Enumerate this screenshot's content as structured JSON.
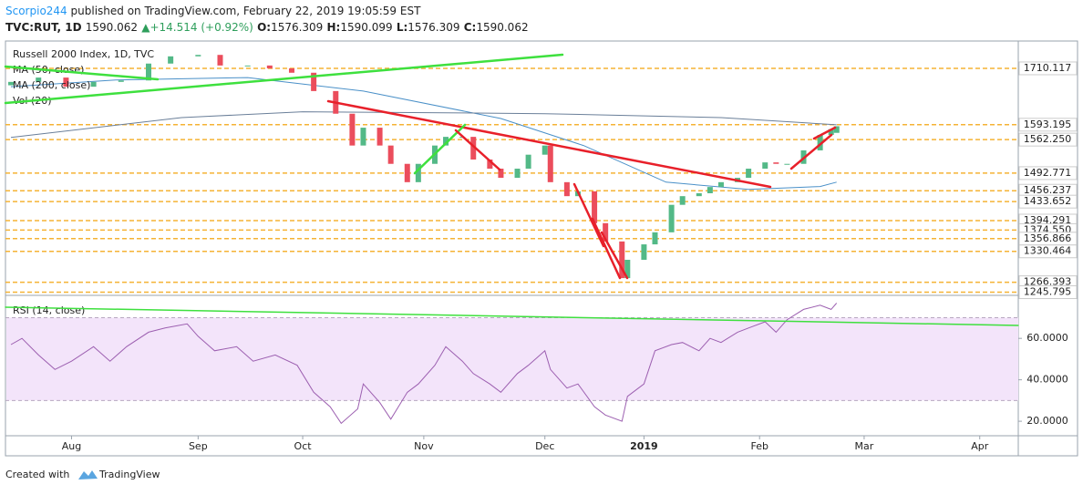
{
  "header": {
    "author": "Scorpio244",
    "published": "published on TradingView.com, February 22, 2019 19:05:59 EST",
    "symbol": "TVC:RUT, 1D",
    "last": "1590.062",
    "arrow": "▲",
    "change": "+14.514 (+0.92%)",
    "o_label": "O:",
    "o": "1576.309",
    "h_label": "H:",
    "h": "1590.099",
    "l_label": "L:",
    "l": "1576.309",
    "c_label": "C:",
    "c": "1590.062"
  },
  "footer": {
    "created": "Created with",
    "brand": "TradingView"
  },
  "chart_data": {
    "type": "candlestick",
    "title": "Russell 2000 Index, 1D, TVC",
    "x": [
      1,
      6,
      11,
      16,
      21,
      26,
      30,
      35,
      39,
      44,
      48,
      52,
      56,
      60,
      63,
      65,
      68,
      70,
      73,
      75,
      78,
      80,
      83,
      85,
      88,
      90,
      93,
      95,
      98,
      99,
      102,
      104,
      107,
      109,
      112,
      113,
      116,
      118,
      121,
      123,
      126,
      128,
      130,
      133,
      135,
      138,
      140,
      142,
      145,
      148,
      150,
      151
    ],
    "open": [
      1675,
      1682,
      1691,
      1672,
      1682,
      1685,
      1720,
      1735,
      1738,
      1716,
      1716,
      1710,
      1701,
      1663,
      1616,
      1550,
      1587,
      1550,
      1512,
      1474,
      1512,
      1550,
      1568,
      1568,
      1521,
      1502,
      1483,
      1502,
      1531,
      1550,
      1474,
      1445,
      1455,
      1389,
      1351,
      1275,
      1313,
      1345,
      1370,
      1427,
      1445,
      1451,
      1464,
      1474,
      1483,
      1502,
      1515,
      1512,
      1512,
      1540,
      1572,
      1576.309
    ],
    "close": [
      1682,
      1691,
      1672,
      1682,
      1685,
      1720,
      1735,
      1738,
      1716,
      1716,
      1710,
      1701,
      1663,
      1616,
      1550,
      1587,
      1550,
      1512,
      1474,
      1512,
      1550,
      1568,
      1568,
      1521,
      1502,
      1483,
      1502,
      1531,
      1550,
      1474,
      1445,
      1455,
      1389,
      1351,
      1275,
      1313,
      1345,
      1370,
      1427,
      1445,
      1451,
      1464,
      1474,
      1483,
      1502,
      1515,
      1512,
      1512,
      1540,
      1572,
      1584,
      1590.062
    ],
    "up_color": "#53b987",
    "down_color": "#eb4d5c",
    "xlim": [
      0,
      184
    ],
    "xticks": [
      {
        "value": 12,
        "label": "Aug"
      },
      {
        "value": 35,
        "label": "Sep"
      },
      {
        "value": 54,
        "label": "Oct"
      },
      {
        "value": 76,
        "label": "Nov"
      },
      {
        "value": 98,
        "label": "Dec"
      },
      {
        "value": 116,
        "label": "2019"
      },
      {
        "value": 137,
        "label": "Feb"
      },
      {
        "value": 156,
        "label": "Mar"
      },
      {
        "value": 177,
        "label": "Apr"
      }
    ],
    "ylim": [
      1243,
      1763
    ],
    "yticks": [
      1710.117,
      1593.195,
      {
        "value": 1562.25,
        "label": "1562.250"
      },
      1492.771,
      1456.237,
      1433.652,
      1394.291,
      {
        "value": 1374.55,
        "label": "1374.550"
      },
      1356.866,
      1330.464,
      1266.393,
      1245.795
    ],
    "level_color": "#f5b335",
    "series": [
      {
        "name": "MA (50, close)",
        "color": "#4a90c8",
        "x": [
          1,
          20,
          44,
          65,
          90,
          105,
          120,
          135,
          148,
          151
        ],
        "values": [
          1672,
          1686,
          1691,
          1663,
          1606,
          1550,
          1474,
          1459,
          1465,
          1474
        ]
      },
      {
        "name": "MA (200, close)",
        "color": "#6a7f99",
        "x": [
          1,
          32,
          54,
          80,
          98,
          130,
          151
        ],
        "values": [
          1567,
          1608,
          1620,
          1618,
          1616,
          1608,
          1593
        ]
      }
    ],
    "extra_legend": "Vol (20)",
    "rsi": {
      "name": "RSI (14, close)",
      "color": "#9c5fb0",
      "x": [
        1,
        3,
        6,
        9,
        12,
        16,
        19,
        22,
        26,
        29,
        33,
        35,
        38,
        42,
        45,
        49,
        53,
        56,
        59,
        61,
        64,
        65,
        68,
        70,
        73,
        75,
        78,
        80,
        83,
        85,
        88,
        90,
        93,
        95,
        98,
        99,
        102,
        104,
        107,
        109,
        112,
        113,
        116,
        118,
        121,
        123,
        126,
        128,
        130,
        133,
        135,
        138,
        140,
        142,
        145,
        148,
        150,
        151
      ],
      "values": [
        57,
        60,
        52,
        45,
        49,
        56,
        49,
        56,
        63,
        65,
        67,
        61,
        54,
        56,
        49,
        52,
        47,
        34,
        27,
        19,
        26,
        38,
        29,
        21,
        34,
        38,
        47,
        56,
        49,
        43,
        38,
        34,
        43,
        47,
        54,
        45,
        36,
        38,
        27,
        23,
        20,
        32,
        38,
        54,
        57,
        58,
        54,
        60,
        58,
        63,
        65,
        68,
        63,
        69,
        74,
        76,
        74,
        77
      ],
      "ylim": [
        13,
        79
      ],
      "yticks": [
        {
          "value": 60,
          "label": "60.0000"
        },
        {
          "value": 40,
          "label": "40.0000"
        },
        {
          "value": 20,
          "label": "20.0000"
        }
      ],
      "band": [
        30,
        70
      ],
      "band_color": "#f3e4fa"
    }
  }
}
